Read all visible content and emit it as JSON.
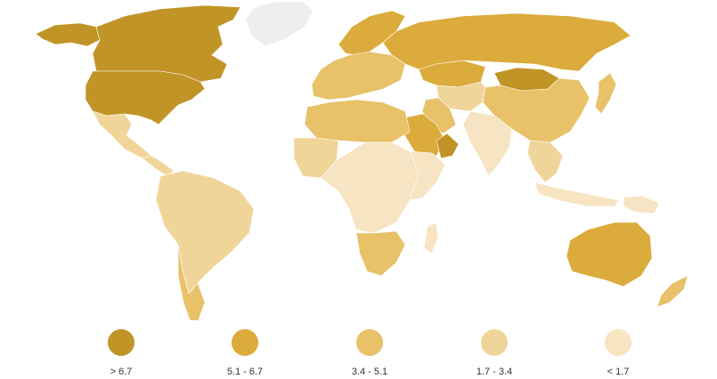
{
  "legend": {
    "items": [
      {
        "label": "> 6.7",
        "color": "#c19428"
      },
      {
        "label": "5.1 - 6.7",
        "color": "#dbab3c"
      },
      {
        "label": "3.4 - 5.1",
        "color": "#e8c168"
      },
      {
        "label": "1.7 - 3.4",
        "color": "#f0d59a"
      },
      {
        "label": "< 1.7",
        "color": "#f6e4c2"
      }
    ]
  },
  "no_data_color": "#eeeeee",
  "regions": [
    {
      "name": "canada",
      "class": 0
    },
    {
      "name": "united-states",
      "class": 0
    },
    {
      "name": "alaska",
      "class": 0
    },
    {
      "name": "mongolia",
      "class": 0
    },
    {
      "name": "oman",
      "class": 0
    },
    {
      "name": "russia",
      "class": 1
    },
    {
      "name": "australia",
      "class": 1
    },
    {
      "name": "saudi-arabia",
      "class": 1
    },
    {
      "name": "scandinavia",
      "class": 1
    },
    {
      "name": "kazakhstan",
      "class": 1
    },
    {
      "name": "europe-west",
      "class": 2
    },
    {
      "name": "china",
      "class": 2
    },
    {
      "name": "iran",
      "class": 2
    },
    {
      "name": "north-africa",
      "class": 2
    },
    {
      "name": "south-africa",
      "class": 2
    },
    {
      "name": "chile-argentina",
      "class": 2
    },
    {
      "name": "new-zealand",
      "class": 2
    },
    {
      "name": "japan",
      "class": 2
    },
    {
      "name": "mexico",
      "class": 3
    },
    {
      "name": "south-america",
      "class": 3
    },
    {
      "name": "sahara-west",
      "class": 3
    },
    {
      "name": "central-asia",
      "class": 3
    },
    {
      "name": "southeast-asia",
      "class": 3
    },
    {
      "name": "central-america",
      "class": 3
    },
    {
      "name": "central-africa",
      "class": 4
    },
    {
      "name": "east-africa",
      "class": 4
    },
    {
      "name": "india",
      "class": 4
    },
    {
      "name": "indonesia",
      "class": 4
    },
    {
      "name": "madagascar",
      "class": 4
    },
    {
      "name": "papua",
      "class": 4
    },
    {
      "name": "greenland",
      "class": -1
    }
  ]
}
